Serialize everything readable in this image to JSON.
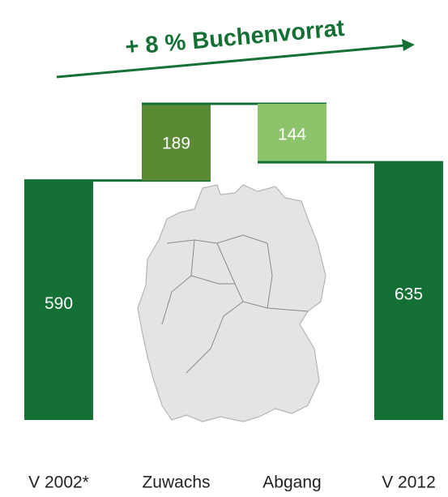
{
  "chart_data": {
    "type": "waterfall",
    "title": "+ 8 % Buchenvorrat",
    "categories": [
      "V 2002*",
      "Zuwachs",
      "Abgang",
      "V 2012"
    ],
    "values": [
      590,
      189,
      144,
      635
    ],
    "measures": [
      "total",
      "increase",
      "decrease",
      "total"
    ],
    "colors": [
      "#157035",
      "#5b8a35",
      "#8dc46b",
      "#157035"
    ],
    "title_color": "#157035"
  }
}
